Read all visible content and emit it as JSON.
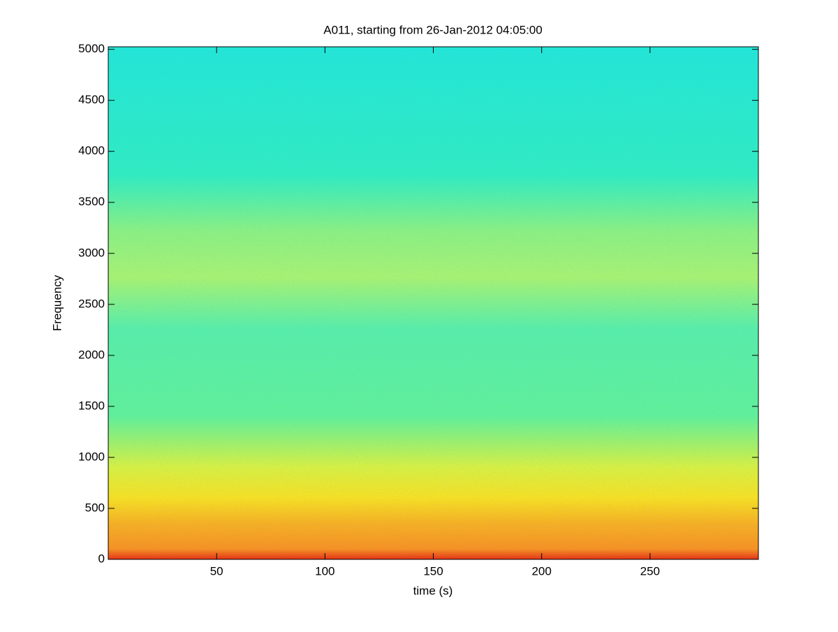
{
  "chart_data": {
    "type": "spectrogram",
    "title": "A011, starting from 26-Jan-2012 04:05:00",
    "xlabel": "time (s)",
    "ylabel": "Frequency",
    "xlim": [
      0,
      300
    ],
    "xticks": [
      50,
      100,
      150,
      200,
      250
    ],
    "ylim": [
      0,
      5025
    ],
    "yticks": [
      0,
      500,
      1000,
      1500,
      2000,
      2500,
      3000,
      3500,
      4000,
      4500,
      5000
    ]
  }
}
